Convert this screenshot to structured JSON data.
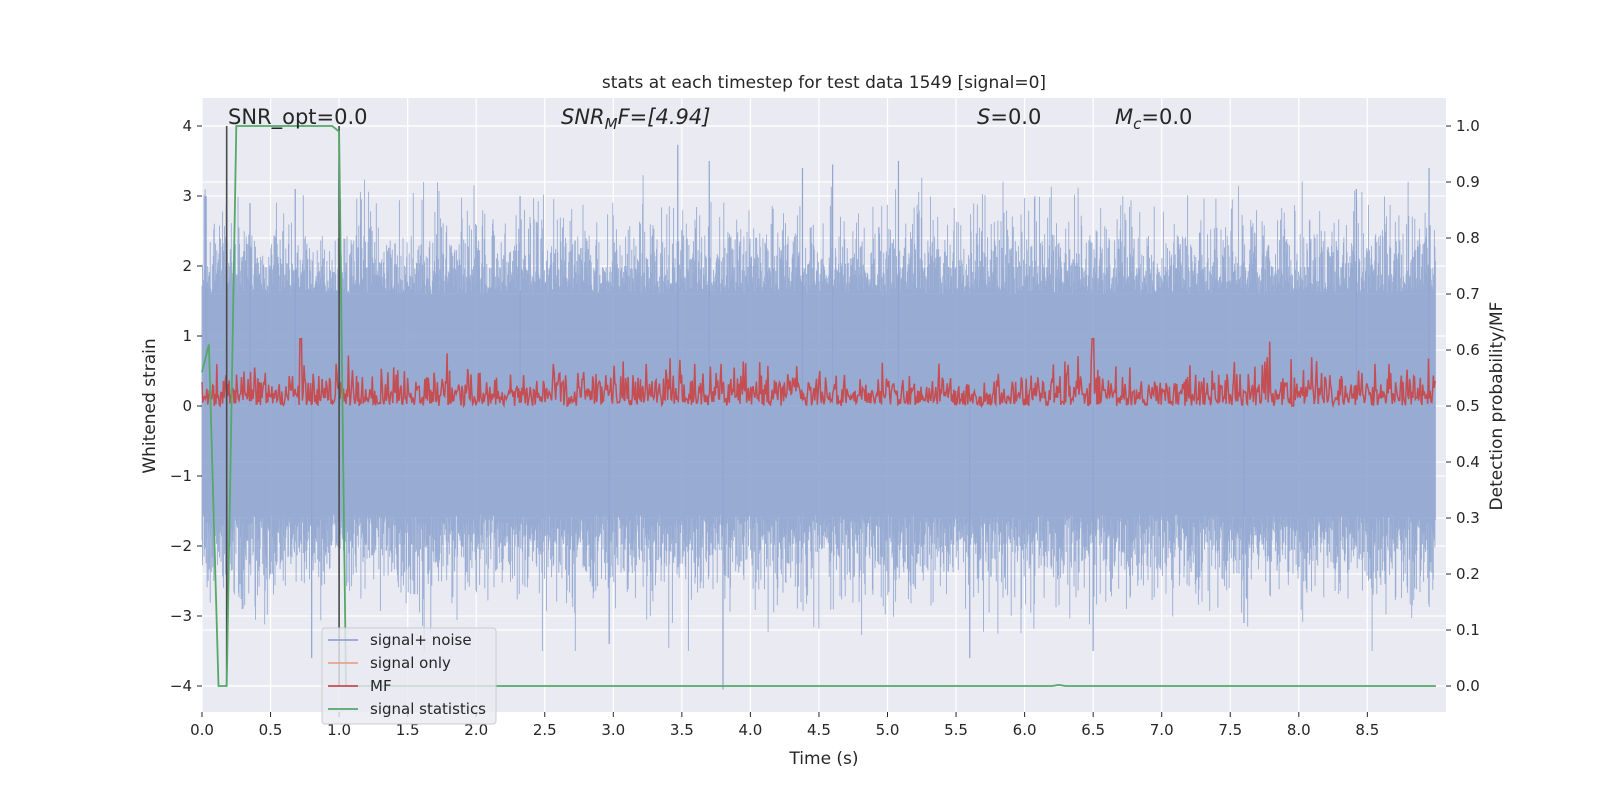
{
  "chart_data": {
    "type": "line",
    "title": "stats at each timestep for test data 1549 [signal=0]",
    "xlabel": "Time (s)",
    "ylabel_left": "Whitened strain",
    "ylabel_right": "Detection probability/MF",
    "xlim": [
      0.0,
      9.0
    ],
    "ylim_left": [
      -4.4,
      4.4
    ],
    "ylim_right": [
      -0.05,
      1.05
    ],
    "xticks": [
      "0.0",
      "0.5",
      "1.0",
      "1.5",
      "2.0",
      "2.5",
      "3.0",
      "3.5",
      "4.0",
      "4.5",
      "5.0",
      "5.5",
      "6.0",
      "6.5",
      "7.0",
      "7.5",
      "8.0",
      "8.5"
    ],
    "yticks_left": [
      "4",
      "3",
      "2",
      "1",
      "0",
      "−1",
      "−2",
      "−3",
      "−4"
    ],
    "yticks_right": [
      "1.0",
      "0.9",
      "0.8",
      "0.7",
      "0.6",
      "0.5",
      "0.4",
      "0.3",
      "0.2",
      "0.1",
      "0.0"
    ],
    "grid": true,
    "legend_position": "lower-left",
    "annotations": {
      "snr_opt": "SNR_opt=0.0",
      "snr_mf_base": "SNR",
      "snr_mf_sub": "M",
      "snr_mf_rest": "F=[4.94]",
      "s": "=0.0",
      "s_sym": "S",
      "mc_sym": "M",
      "mc_sub": "c",
      "mc_rest": "=0.0"
    },
    "vertical_markers_x": [
      0.18,
      1.0
    ],
    "series": [
      {
        "name": "signal+ noise",
        "color": "#8fa5cf",
        "description_values": "whitened noise, approximately within [-3.5, 3.7]",
        "envelope": {
          "typical_amplitude": 1.6,
          "peak_max": 3.73,
          "peak_min": -4.05
        }
      },
      {
        "name": "signal only",
        "color": "#e8a48a",
        "values": []
      },
      {
        "name": "MF",
        "color": "#c44e52",
        "axis": "right",
        "range": [
          0.5,
          0.62
        ],
        "peaks": [
          {
            "x": 0.72,
            "y": 0.62
          },
          {
            "x": 6.5,
            "y": 0.62
          }
        ]
      },
      {
        "name": "signal statistics",
        "color": "#55a868",
        "axis": "right",
        "x": [
          0.0,
          0.05,
          0.12,
          0.18,
          0.25,
          0.95,
          1.0,
          1.05,
          1.5,
          6.2,
          6.25,
          6.3,
          9.0
        ],
        "y": [
          0.56,
          0.61,
          0.0,
          0.0,
          1.0,
          1.0,
          0.99,
          0.0,
          0.0,
          0.0,
          0.002,
          0.0,
          0.0
        ]
      }
    ]
  }
}
